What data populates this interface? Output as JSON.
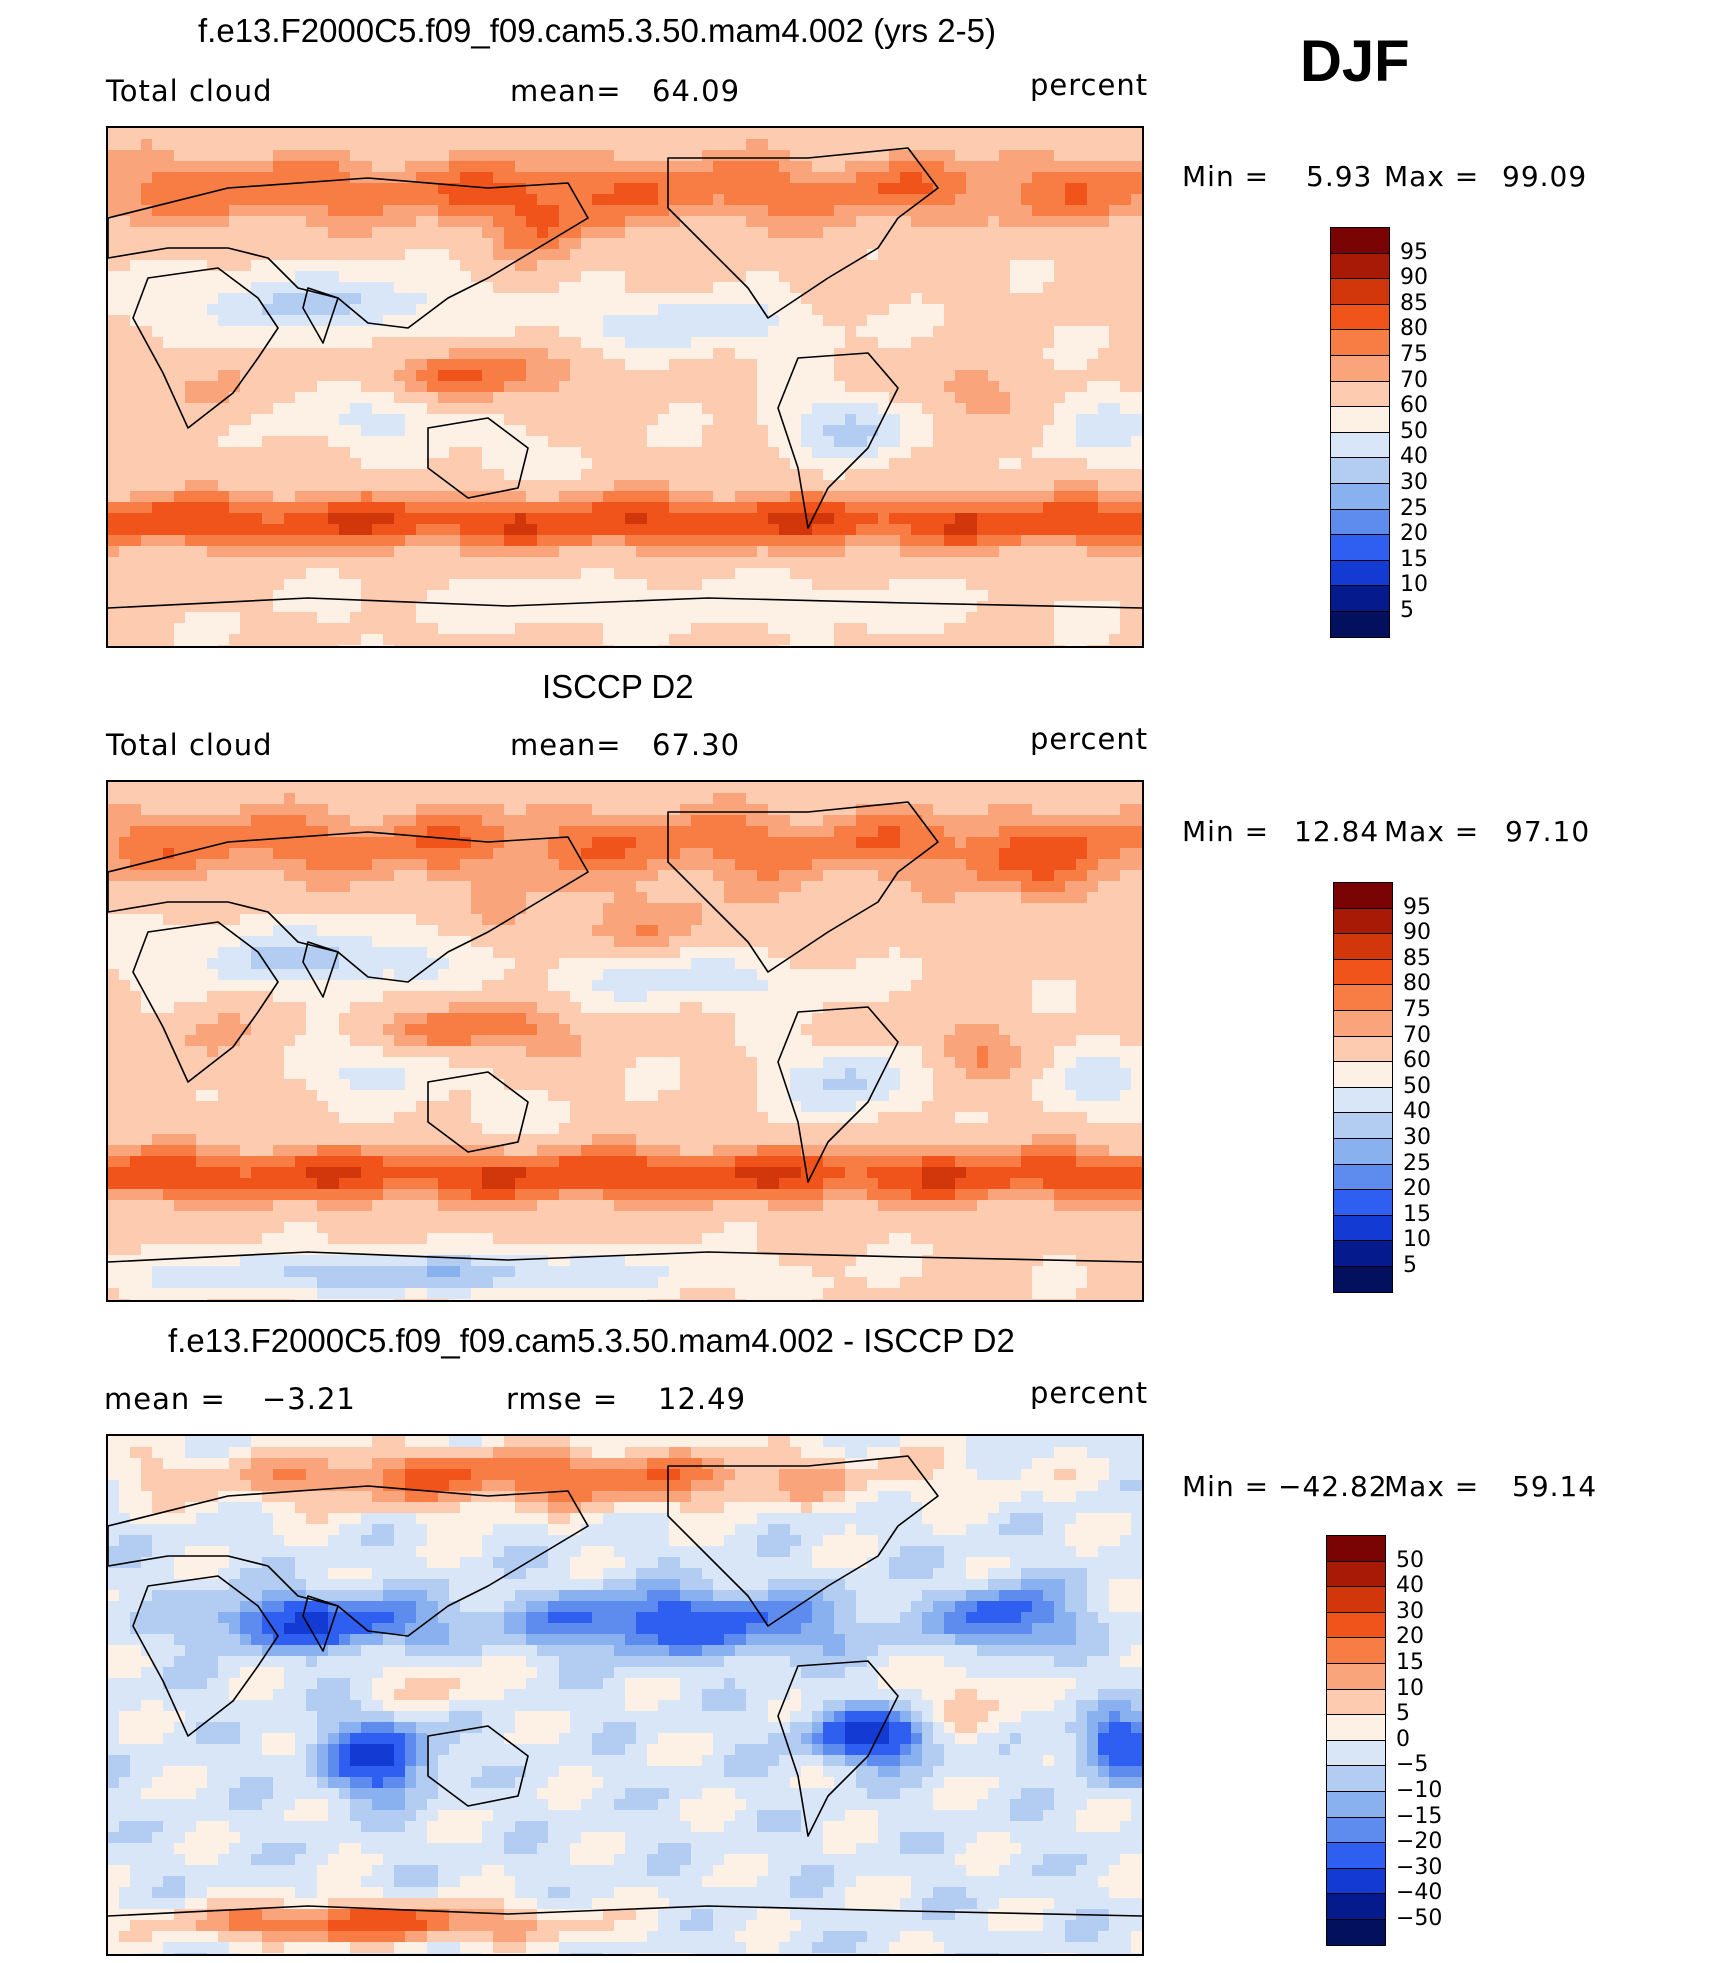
{
  "season": "DJF",
  "panels": [
    {
      "id": "model",
      "title": "f.e13.F2000C5.f09_f09.cam5.3.50.mam4.002 (yrs 2-5)",
      "left_label": "Total cloud",
      "mid_label": "mean=",
      "mid_value": "64.09",
      "right_label": "percent",
      "min_label": "Min =",
      "min_value": "5.93",
      "max_label": "Max =",
      "max_value": "99.09",
      "levels": [
        "95",
        "90",
        "85",
        "80",
        "75",
        "70",
        "60",
        "50",
        "40",
        "30",
        "25",
        "20",
        "15",
        "10",
        "5"
      ]
    },
    {
      "id": "obs",
      "title": "ISCCP D2",
      "left_label": "Total cloud",
      "mid_label": "mean=",
      "mid_value": "67.30",
      "right_label": "percent",
      "min_label": "Min =",
      "min_value": "12.84",
      "max_label": "Max =",
      "max_value": "97.10",
      "levels": [
        "95",
        "90",
        "85",
        "80",
        "75",
        "70",
        "60",
        "50",
        "40",
        "30",
        "25",
        "20",
        "15",
        "10",
        "5"
      ]
    },
    {
      "id": "diff",
      "title": "f.e13.F2000C5.f09_f09.cam5.3.50.mam4.002 - ISCCP D2",
      "left_label": "mean =",
      "left_value": "−3.21",
      "mid_label": "rmse =",
      "mid_value": "12.49",
      "right_label": "percent",
      "min_label": "Min =",
      "min_value": "−42.82",
      "max_label": "Max =",
      "max_value": "59.14",
      "levels": [
        "50",
        "40",
        "30",
        "20",
        "15",
        "10",
        "5",
        "0",
        "−5",
        "−10",
        "−15",
        "−20",
        "−30",
        "−40",
        "−50"
      ]
    }
  ],
  "colors": {
    "abs_scale": [
      "#7a0403",
      "#a81a06",
      "#d2360b",
      "#f0541a",
      "#f77d44",
      "#f9a47b",
      "#fccbb0",
      "#fdf0e4",
      "#d9e6f7",
      "#b3cdf2",
      "#8ab1ef",
      "#5d8bee",
      "#2f5ff0",
      "#133ad2",
      "#051a8c",
      "#02105e"
    ],
    "diff_scale": [
      "#7a0403",
      "#a81a06",
      "#d2360b",
      "#f0541a",
      "#f77d44",
      "#f9a47b",
      "#fccbb0",
      "#fdf0e4",
      "#d9e6f7",
      "#b3cdf2",
      "#8ab1ef",
      "#5d8bee",
      "#2f5ff0",
      "#133ad2",
      "#051a8c",
      "#02105e"
    ]
  }
}
